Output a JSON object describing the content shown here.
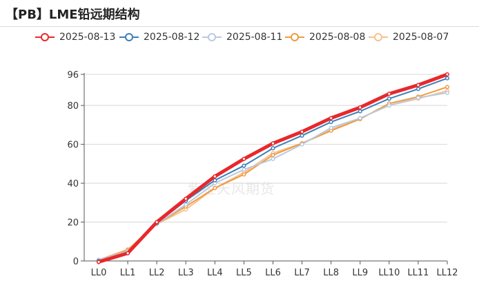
{
  "title": "【PB】LME铅远期结构",
  "watermark": "紫金天风期货",
  "chart_data": {
    "type": "line",
    "categories": [
      "LL0",
      "LL1",
      "LL2",
      "LL3",
      "LL4",
      "LL5",
      "LL6",
      "LL7",
      "LL8",
      "LL9",
      "LL10",
      "LL11",
      "LL12"
    ],
    "y_ticks": [
      0,
      20,
      40,
      60,
      80,
      96
    ],
    "ylim": [
      0,
      96
    ],
    "grid": true,
    "legend_position": "top",
    "series": [
      {
        "name": "2025-08-13",
        "color": "#e8282b",
        "values": [
          -0.5,
          4,
          20,
          32,
          43.5,
          52.5,
          60.5,
          66.5,
          73.5,
          79,
          86,
          90.5,
          96
        ]
      },
      {
        "name": "2025-08-12",
        "color": "#3a7fb8",
        "values": [
          0,
          4,
          19.5,
          31,
          41.5,
          49,
          58,
          64.5,
          71.5,
          77,
          83.5,
          88.5,
          94
        ]
      },
      {
        "name": "2025-08-11",
        "color": "#b9c9e0",
        "values": [
          0.5,
          5,
          19,
          29,
          40,
          47,
          52.5,
          60,
          68.5,
          73.5,
          80,
          84,
          86.5
        ]
      },
      {
        "name": "2025-08-08",
        "color": "#f09a3e",
        "values": [
          0.5,
          5.5,
          19,
          28,
          37.5,
          44.5,
          54.5,
          60.5,
          67,
          73,
          81,
          84.5,
          89.5
        ]
      },
      {
        "name": "2025-08-07",
        "color": "#f7c08c",
        "values": [
          0.5,
          6,
          19,
          26.5,
          37.5,
          45.5,
          55.5,
          60.5,
          67.5,
          73.5,
          80,
          83.5,
          87.5
        ]
      }
    ]
  }
}
